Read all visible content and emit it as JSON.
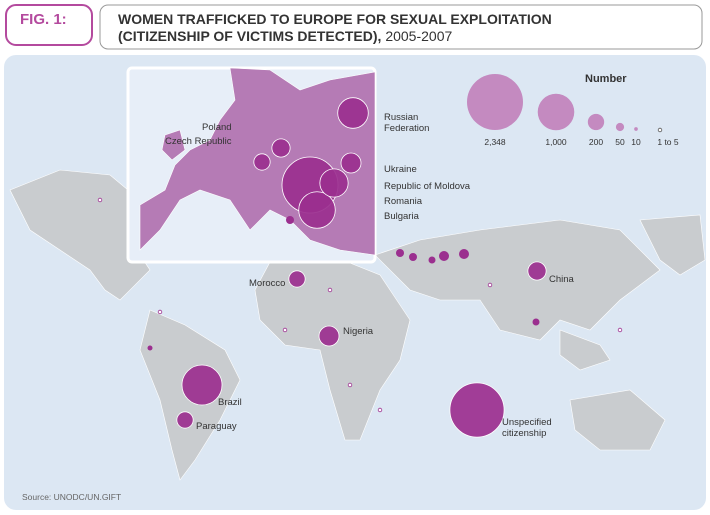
{
  "header": {
    "fig": "FIG. 1:",
    "title_line1": "WOMEN TRAFFICKED TO EUROPE FOR SEXUAL EXPLOITATION",
    "title_line2": "(CITIZENSHIP OF VICTIMS DETECTED),",
    "years": "2005-2007"
  },
  "legend": {
    "title": "Number",
    "items": [
      {
        "value": 2348,
        "label": "2,348"
      },
      {
        "value": 1000,
        "label": "1,000"
      },
      200,
      50,
      10,
      {
        "label": "1 to 5"
      }
    ]
  },
  "countries": [
    {
      "name": "Russian Federation",
      "value": 700
    },
    {
      "name": "Poland",
      "value": 250
    },
    {
      "name": "Czech Republic",
      "value": 200
    },
    {
      "name": "Ukraine",
      "value": 300
    },
    {
      "name": "Republic of Moldova",
      "value": 600
    },
    {
      "name": "Romania",
      "value": 2348
    },
    {
      "name": "Bulgaria",
      "value": 1000
    },
    {
      "name": "Morocco",
      "value": 200
    },
    {
      "name": "Nigeria",
      "value": 300
    },
    {
      "name": "China",
      "value": 250
    },
    {
      "name": "Brazil",
      "value": 1200
    },
    {
      "name": "Paraguay",
      "value": 200
    },
    {
      "name": "Unspecified citizenship",
      "value": 2200
    }
  ],
  "source": "Source: UNODC/UN.GIFT"
}
